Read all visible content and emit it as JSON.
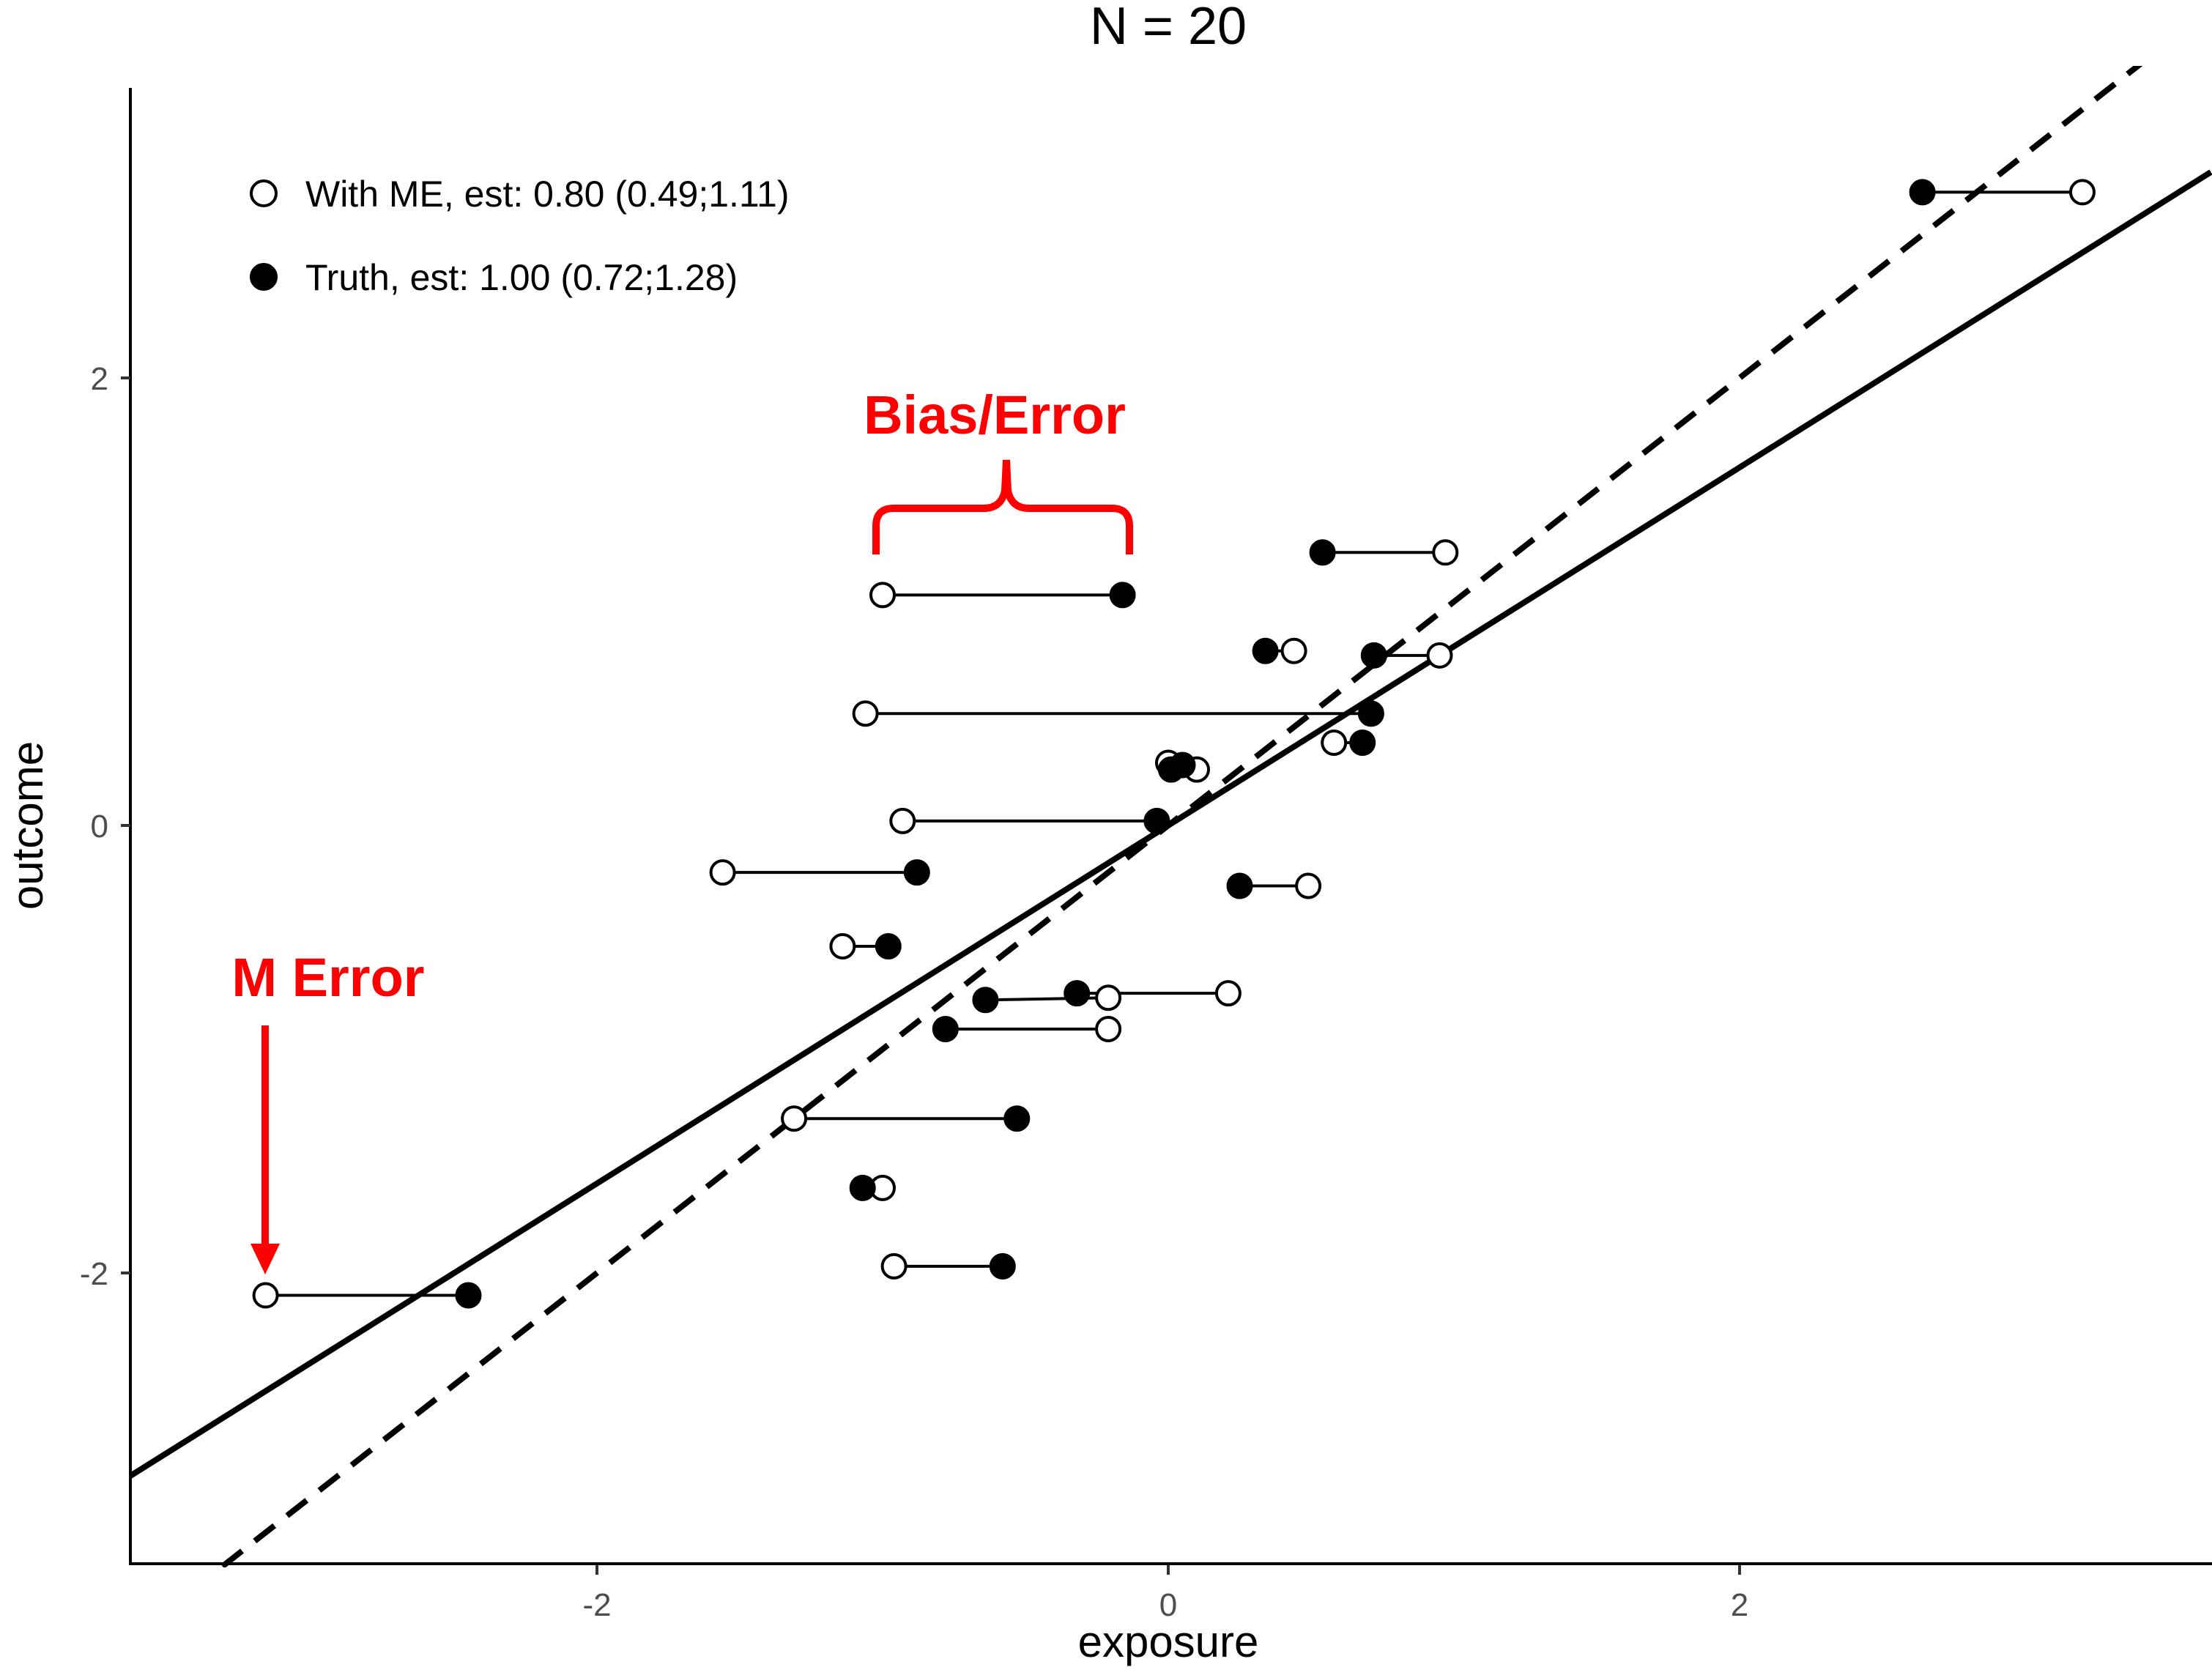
{
  "chart_data": {
    "type": "scatter",
    "title": "N = 20",
    "xlabel": "exposure",
    "ylabel": "outcome",
    "xlim": [
      -3.65,
      3.65
    ],
    "ylim": [
      -3.32,
      3.3
    ],
    "xticks": [
      -2,
      0,
      2
    ],
    "yticks": [
      -2,
      0,
      2
    ],
    "xtick_labels": [
      "-2",
      "0",
      "2"
    ],
    "ytick_labels": [
      "-2",
      "0",
      "2"
    ],
    "grid": false,
    "legend_position": "top-left",
    "legend": [
      {
        "label": "With ME, est: 0.80 (0.49;1.11)",
        "marker": "open-circle"
      },
      {
        "label": "Truth, est: 1.00 (0.72;1.28)",
        "marker": "filled-circle"
      }
    ],
    "series": [
      {
        "name": "With ME, est: 0.80 (0.49;1.11)",
        "marker": "open-circle",
        "line_style": "solid",
        "fit": {
          "slope": 0.8,
          "intercept": 0.0
        },
        "points": [
          [
            3.2,
            2.83
          ],
          [
            0.97,
            1.22
          ],
          [
            -1.0,
            1.03
          ],
          [
            0.44,
            0.78
          ],
          [
            0.95,
            0.76
          ],
          [
            -1.06,
            0.5
          ],
          [
            0.58,
            0.37
          ],
          [
            0.0,
            0.28
          ],
          [
            0.1,
            0.25
          ],
          [
            -0.93,
            0.02
          ],
          [
            -1.56,
            -0.21
          ],
          [
            0.49,
            -0.27
          ],
          [
            -1.14,
            -0.54
          ],
          [
            0.21,
            -0.75
          ],
          [
            -0.21,
            -0.77
          ],
          [
            -0.21,
            -0.91
          ],
          [
            -1.31,
            -1.31
          ],
          [
            -1.0,
            -1.62
          ],
          [
            -0.96,
            -1.97
          ],
          [
            -3.16,
            -2.1
          ]
        ]
      },
      {
        "name": "Truth, est: 1.00 (0.72;1.28)",
        "marker": "filled-circle",
        "line_style": "dashed",
        "fit": {
          "slope": 1.0,
          "intercept": 0.0
        },
        "points": [
          [
            2.64,
            2.83
          ],
          [
            0.54,
            1.22
          ],
          [
            -0.16,
            1.03
          ],
          [
            0.34,
            0.78
          ],
          [
            0.72,
            0.76
          ],
          [
            0.71,
            0.5
          ],
          [
            0.68,
            0.37
          ],
          [
            0.01,
            0.25
          ],
          [
            0.05,
            0.27
          ],
          [
            -0.04,
            0.02
          ],
          [
            -0.88,
            -0.21
          ],
          [
            0.25,
            -0.27
          ],
          [
            -0.98,
            -0.54
          ],
          [
            -0.32,
            -0.75
          ],
          [
            -0.64,
            -0.78
          ],
          [
            -0.78,
            -0.91
          ],
          [
            -0.53,
            -1.31
          ],
          [
            -1.07,
            -1.62
          ],
          [
            -0.58,
            -1.97
          ],
          [
            -2.45,
            -2.1
          ]
        ]
      }
    ],
    "annotations": [
      {
        "text": "Bias/Error",
        "color": "#ff0000",
        "type": "brace",
        "target_x": [
          -1.0,
          -0.16
        ],
        "target_y": 1.03
      },
      {
        "text": "M Error",
        "color": "#ff0000",
        "type": "arrow",
        "target_x": -3.16,
        "target_y": -2.1
      }
    ]
  }
}
